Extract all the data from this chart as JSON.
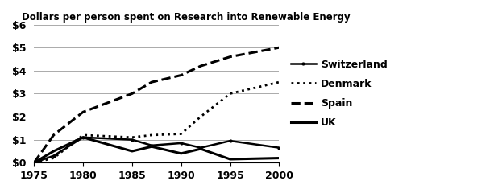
{
  "title": "Dollars per person spent on Research into Renewable Energy",
  "years": [
    1975,
    1977,
    1980,
    1985,
    1987,
    1990,
    1992,
    1995,
    2000
  ],
  "switzerland": [
    0.0,
    0.3,
    1.1,
    1.0,
    0.75,
    0.85,
    0.65,
    0.95,
    0.65
  ],
  "denmark": [
    0.0,
    0.2,
    1.2,
    1.1,
    1.2,
    1.25,
    2.0,
    3.0,
    3.5
  ],
  "spain": [
    0.0,
    1.2,
    2.2,
    3.0,
    3.5,
    3.8,
    4.2,
    4.6,
    5.0
  ],
  "uk": [
    0.0,
    0.5,
    1.1,
    0.5,
    0.7,
    0.4,
    0.6,
    0.15,
    0.2
  ],
  "xlim": [
    1975,
    2000
  ],
  "ylim": [
    0,
    6
  ],
  "yticks": [
    0,
    1,
    2,
    3,
    4,
    5,
    6
  ],
  "ytick_labels": [
    "$0",
    "$1",
    "$2",
    "$3",
    "$4",
    "$5",
    "$6"
  ],
  "xticks": [
    1975,
    1980,
    1985,
    1990,
    1995,
    2000
  ],
  "color": "#000000",
  "background_color": "#ffffff",
  "legend_labels": [
    "Switzerland",
    "Denmark",
    "Spain",
    "UK"
  ]
}
